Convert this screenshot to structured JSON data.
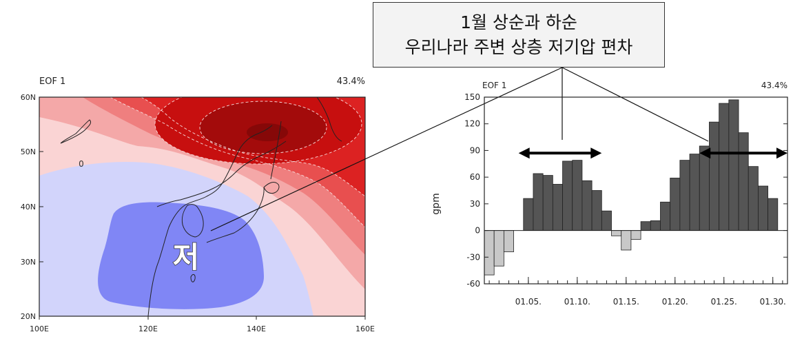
{
  "callout": {
    "line1": "1월 상순과 하순",
    "line2": "우리나라 주변 상층 저기압 편차"
  },
  "map": {
    "label_left": "EOF 1",
    "label_right": "43.4%",
    "low_label": "저",
    "contour_label": "0",
    "lat_ticks": [
      "60N",
      "50N",
      "40N",
      "30N",
      "20N"
    ],
    "lon_ticks": [
      "100E",
      "120E",
      "140E",
      "160E"
    ],
    "colors": {
      "background": "#fad4d4",
      "pos1": "#f4a8a8",
      "pos2": "#ef7f7f",
      "pos3": "#e84f4f",
      "pos4": "#dc2222",
      "pos5": "#c70f0f",
      "pos6": "#a30b0b",
      "pos7": "#860808",
      "neg1": "#d2d4fb",
      "neg2": "#8086f5"
    }
  },
  "chart_data": {
    "type": "bar",
    "label_left": "EOF 1",
    "label_right": "43.4%",
    "ylabel": "gpm",
    "ylim": [
      -60,
      150
    ],
    "yticks": [
      150,
      120,
      90,
      60,
      30,
      0,
      -30,
      -60
    ],
    "xtick_labels": [
      "01.05.",
      "01.10.",
      "01.15.",
      "01.20.",
      "01.25.",
      "01.30."
    ],
    "xtick_days": [
      5,
      10,
      15,
      20,
      25,
      30
    ],
    "x": [
      1,
      2,
      3,
      4,
      5,
      6,
      7,
      8,
      9,
      10,
      11,
      12,
      13,
      14,
      15,
      16,
      17,
      18,
      19,
      20,
      21,
      22,
      23,
      24,
      25,
      26,
      27,
      28,
      29,
      30,
      31
    ],
    "values": [
      -50,
      -40,
      -24,
      0,
      36,
      64,
      62,
      52,
      78,
      79,
      56,
      45,
      22,
      -6,
      -22,
      -10,
      10,
      11,
      32,
      59,
      79,
      86,
      95,
      122,
      143,
      147,
      110,
      72,
      50,
      36,
      0
    ],
    "colors": {
      "positive": "#555555",
      "negative": "#c8c8c8",
      "arrow": "#000000"
    }
  }
}
